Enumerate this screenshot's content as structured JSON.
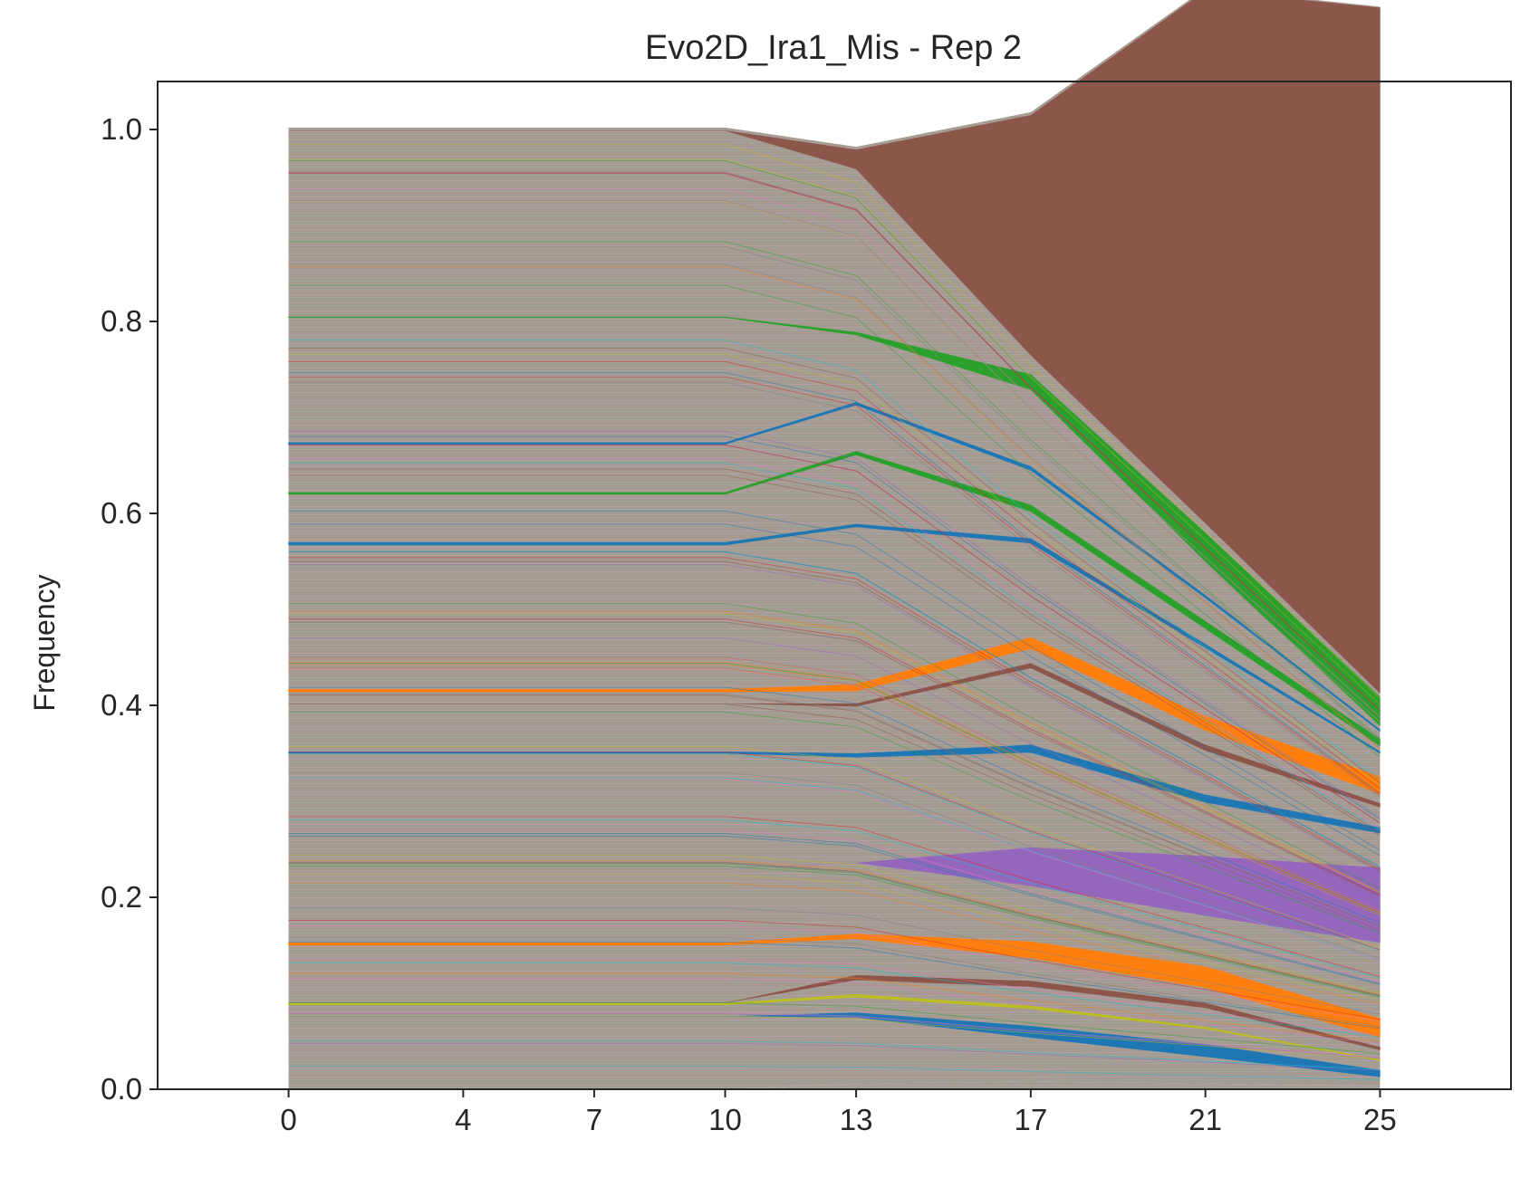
{
  "chart_data": {
    "type": "area",
    "stacked": true,
    "title": "Evo2D_Ira1_Mis - Rep 2",
    "xlabel": "",
    "ylabel": "Frequency",
    "x": [
      0,
      4,
      7,
      10,
      13,
      17,
      21,
      25
    ],
    "xticks": [
      "0",
      "4",
      "7",
      "10",
      "13",
      "17",
      "21",
      "25"
    ],
    "ylim": [
      0,
      1.05
    ],
    "yticks": [
      "0.0",
      "0.2",
      "0.4",
      "0.6",
      "0.8",
      "1.0"
    ],
    "grid": false,
    "legend": "none",
    "series": [
      {
        "color": "#ffffff",
        "values": [
          0,
          0,
          0,
          0,
          0.006,
          0.008,
          0.006,
          0.003
        ]
      },
      {
        "color": "#ffffff",
        "values": [
          0.076,
          0.076,
          0.076,
          0.076,
          0.069,
          0.046,
          0.028,
          0.01
        ]
      },
      {
        "color": "#1f77b4",
        "values": [
          0,
          0,
          0,
          0,
          0.005,
          0.012,
          0.013,
          0.007
        ]
      },
      {
        "color": "#ffffff",
        "values": [
          0.012,
          0.012,
          0.012,
          0.012,
          0.016,
          0.018,
          0.016,
          0.01
        ]
      },
      {
        "color": "#bcbd22",
        "values": [
          0.002,
          0.002,
          0.002,
          0.002,
          0.003,
          0.003,
          0.002,
          0.001
        ]
      },
      {
        "color": "#ffffff",
        "values": [
          0,
          0,
          0,
          0,
          0.015,
          0.02,
          0.02,
          0.01
        ]
      },
      {
        "color": "#8c564b",
        "values": [
          0,
          0,
          0,
          0,
          0.005,
          0.006,
          0.005,
          0.003
        ]
      },
      {
        "color": "#ffffff",
        "values": [
          0.06,
          0.06,
          0.06,
          0.06,
          0.038,
          0.024,
          0.016,
          0.01
        ]
      },
      {
        "color": "#ff7f0e",
        "values": [
          0.003,
          0.003,
          0.003,
          0.003,
          0.005,
          0.017,
          0.022,
          0.02
        ]
      },
      {
        "color": "#ffffff",
        "values": [
          0.077,
          0.077,
          0.077,
          0.077,
          0.074,
          0.058,
          0.053,
          0.079
        ]
      },
      {
        "color": "#9467bd",
        "values": [
          0,
          0,
          0,
          0,
          0,
          0.04,
          0.062,
          0.078
        ]
      },
      {
        "color": "#ffffff",
        "values": [
          0.12,
          0.12,
          0.12,
          0.12,
          0.11,
          0.099,
          0.056,
          0.036
        ]
      },
      {
        "color": "#1f77b4",
        "values": [
          0.002,
          0.002,
          0.002,
          0.002,
          0.004,
          0.008,
          0.008,
          0.006
        ]
      },
      {
        "color": "#ffffff",
        "values": [
          0.05,
          0.05,
          0.05,
          0.05,
          0.049,
          0.08,
          0.046,
          0.021
        ]
      },
      {
        "color": "#8c564b",
        "values": [
          0,
          0,
          0,
          0,
          0.003,
          0.005,
          0.006,
          0.004
        ]
      },
      {
        "color": "#ffffff",
        "values": [
          0.012,
          0.012,
          0.012,
          0.012,
          0.013,
          0.015,
          0.015,
          0.01
        ]
      },
      {
        "color": "#ff7f0e",
        "values": [
          0.003,
          0.003,
          0.003,
          0.003,
          0.007,
          0.012,
          0.015,
          0.018
        ]
      },
      {
        "color": "#ffffff",
        "values": [
          0.15,
          0.15,
          0.15,
          0.15,
          0.164,
          0.098,
          0.071,
          0.024
        ]
      },
      {
        "color": "#1f77b4",
        "values": [
          0.003,
          0.003,
          0.003,
          0.003,
          0.003,
          0.005,
          0.004,
          0.002
        ]
      },
      {
        "color": "#ffffff",
        "values": [
          0.05,
          0.05,
          0.05,
          0.05,
          0.072,
          0.028,
          0.016,
          0.006
        ]
      },
      {
        "color": "#2ca02c",
        "values": [
          0.002,
          0.002,
          0.002,
          0.002,
          0.004,
          0.007,
          0.008,
          0.007
        ]
      },
      {
        "color": "#ffffff",
        "values": [
          0.05,
          0.05,
          0.05,
          0.05,
          0.048,
          0.036,
          0.024,
          0.008
        ]
      },
      {
        "color": "#1f77b4",
        "values": [
          0.002,
          0.002,
          0.002,
          0.002,
          0.003,
          0.004,
          0.003,
          0.002
        ]
      },
      {
        "color": "#ffffff",
        "values": [
          0.13,
          0.13,
          0.13,
          0.13,
          0.07,
          0.08,
          0.035,
          0.004
        ]
      },
      {
        "color": "#2ca02c",
        "values": [
          0.001,
          0.001,
          0.001,
          0.001,
          0.003,
          0.016,
          0.03,
          0.03
        ]
      },
      {
        "color": "#ffffff",
        "values": [
          0.194,
          0.194,
          0.194,
          0.194,
          0.17,
          0.02,
          0.01,
          0.004
        ]
      },
      {
        "color": "#8c564b",
        "values": [
          0,
          0,
          0,
          0,
          0.02,
          0.25,
          0.555,
          0.714
        ]
      },
      {
        "color": "#ffffff",
        "values": [
          0.003,
          0.003,
          0.003,
          0.003,
          0.003,
          0.003,
          0.002,
          0.001
        ]
      }
    ]
  }
}
